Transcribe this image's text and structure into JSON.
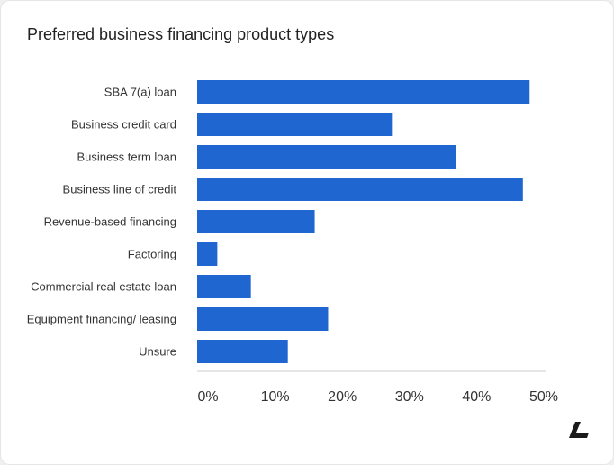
{
  "chart_data": {
    "type": "bar",
    "orientation": "horizontal",
    "title": "Preferred business financing product types",
    "categories": [
      "SBA 7(a) loan",
      "Business credit card",
      "Business term loan",
      "Business line of credit",
      "Revenue-based financing",
      "Factoring",
      "Commercial real estate loan",
      "Equipment financing/ leasing",
      "Unsure"
    ],
    "values": [
      49.5,
      29,
      38.5,
      48.5,
      17.5,
      3,
      8,
      19.5,
      13.5
    ],
    "xlim": [
      0,
      50
    ],
    "xticks": [
      "0%",
      "10%",
      "20%",
      "30%",
      "40%",
      "50%"
    ],
    "xtick_values": [
      0,
      10,
      20,
      30,
      40,
      50
    ],
    "xlabel": "",
    "ylabel": "",
    "grid": false,
    "bar_color": "#1f66d1",
    "axis_color": "#cccccc"
  },
  "brand": {
    "logo_icon": "lendio-logo-icon",
    "logo_color": "#1a1a1a"
  }
}
